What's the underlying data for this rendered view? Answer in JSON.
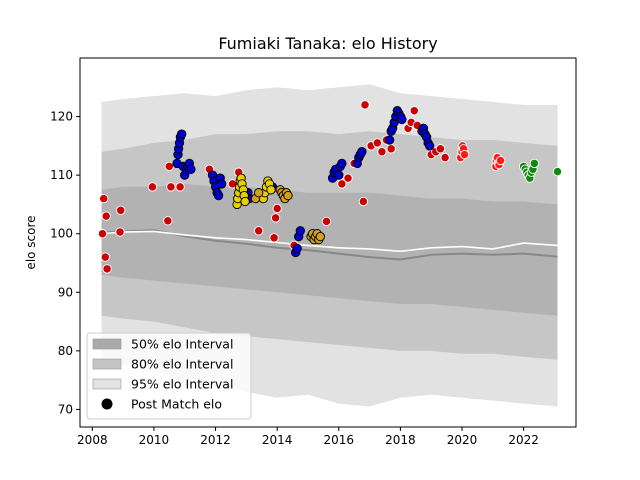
{
  "chart_data": {
    "type": "scatter",
    "title": "Fumiaki Tanaka: elo History",
    "xlabel": "",
    "ylabel": "elo score",
    "xlim": [
      2007.6,
      2023.7
    ],
    "ylim": [
      67,
      130
    ],
    "x_ticks": [
      2008,
      2010,
      2012,
      2014,
      2016,
      2018,
      2020,
      2022
    ],
    "y_ticks": [
      70,
      80,
      90,
      100,
      110,
      120
    ],
    "legend_position": "lower-left",
    "legend": [
      {
        "label": "50% elo Interval",
        "kind": "band",
        "color": "#a9a9a9"
      },
      {
        "label": "80% elo Interval",
        "kind": "band",
        "color": "#c4c4c4"
      },
      {
        "label": "95% elo Interval",
        "kind": "band",
        "color": "#e2e2e2"
      },
      {
        "label": "Post Match elo",
        "kind": "marker",
        "color": "#000000"
      }
    ],
    "colors": {
      "band95": "#e2e2e2",
      "band80": "#c6c6c6",
      "band50": "#b2b2b2",
      "mean_line": "#888888",
      "player_line": "#ffffff",
      "red": "#cc0000",
      "blue": "#0000cc",
      "yellow": "#e6d000",
      "gold": "#d4a017",
      "bright_red": "#ff1a1a",
      "green": "#118811"
    },
    "bands": {
      "x": [
        2008.3,
        2009.0,
        2010.0,
        2011.0,
        2012.0,
        2013.0,
        2014.0,
        2015.0,
        2016.0,
        2017.0,
        2018.0,
        2019.0,
        2020.0,
        2021.0,
        2022.0,
        2023.1
      ],
      "p95_upper": [
        122.5,
        123.0,
        123.5,
        124.0,
        123.5,
        124.5,
        125.0,
        124.5,
        125.0,
        125.5,
        124.0,
        123.5,
        123.0,
        122.5,
        122.0,
        122.0
      ],
      "p95_lower": [
        78.0,
        77.5,
        76.5,
        75.0,
        74.5,
        73.0,
        72.0,
        72.5,
        71.0,
        70.5,
        72.0,
        72.5,
        72.0,
        71.5,
        71.0,
        70.5
      ],
      "p80_upper": [
        114.0,
        114.5,
        115.5,
        116.0,
        117.0,
        117.0,
        117.5,
        117.5,
        117.0,
        117.5,
        117.0,
        116.5,
        116.0,
        116.0,
        115.5,
        115.0
      ],
      "p80_lower": [
        86.0,
        85.5,
        85.0,
        84.0,
        83.0,
        82.5,
        82.0,
        81.5,
        81.0,
        80.5,
        80.0,
        80.0,
        79.5,
        79.5,
        79.0,
        78.5
      ],
      "p50_upper": [
        107.5,
        108.0,
        108.0,
        108.5,
        108.0,
        108.0,
        107.5,
        107.0,
        107.0,
        107.0,
        106.5,
        106.0,
        106.0,
        105.5,
        105.5,
        105.0
      ],
      "p50_lower": [
        93.0,
        92.5,
        92.0,
        91.5,
        91.0,
        90.5,
        90.0,
        89.5,
        89.0,
        88.5,
        88.0,
        88.0,
        87.5,
        87.0,
        86.5,
        86.0
      ],
      "mean": [
        100.2,
        100.4,
        100.6,
        99.6,
        98.8,
        98.3,
        97.6,
        97.2,
        96.6,
        96.0,
        95.6,
        96.4,
        96.6,
        96.4,
        96.6,
        96.1
      ]
    },
    "player_line": {
      "x": [
        2008.3,
        2009.0,
        2010.0,
        2011.0,
        2012.0,
        2013.0,
        2014.0,
        2015.0,
        2016.0,
        2017.0,
        2018.0,
        2019.0,
        2020.0,
        2021.0,
        2022.0,
        2023.1
      ],
      "y": [
        100.0,
        100.3,
        100.4,
        99.8,
        99.3,
        99.0,
        98.5,
        98.0,
        97.6,
        97.4,
        97.0,
        97.6,
        97.8,
        97.4,
        98.4,
        98.0
      ]
    },
    "series": [
      {
        "color_key": "red",
        "x": [
          2008.33,
          2008.37,
          2008.42,
          2008.45,
          2008.48,
          2008.9,
          2008.92,
          2009.95,
          2010.45,
          2010.5,
          2010.55,
          2010.85,
          2011.8,
          2012.55,
          2012.75,
          2013.4,
          2013.9,
          2013.95,
          2014.0,
          2014.55,
          2015.6,
          2016.1,
          2016.3,
          2016.5,
          2016.8,
          2016.85,
          2017.05,
          2017.25,
          2017.4,
          2017.55,
          2017.7,
          2018.05,
          2018.25,
          2018.35,
          2018.45,
          2018.55,
          2019.0,
          2019.15,
          2019.3,
          2019.45
        ],
        "y": [
          100.0,
          106.0,
          96.0,
          103.0,
          94.0,
          100.3,
          104.0,
          108.0,
          102.2,
          111.5,
          108.0,
          108.0,
          111.0,
          108.5,
          110.5,
          100.5,
          99.3,
          102.7,
          104.3,
          98.0,
          102.1,
          108.5,
          109.5,
          112.0,
          105.5,
          122.0,
          115.0,
          115.5,
          114.0,
          116.0,
          114.5,
          120.0,
          118.0,
          119.0,
          121.0,
          118.5,
          113.5,
          114.0,
          114.5,
          113.0
        ]
      },
      {
        "color_key": "blue",
        "x": [
          2010.75,
          2010.78,
          2010.8,
          2010.83,
          2010.86,
          2010.9,
          2010.95,
          2011.0,
          2011.05,
          2011.1,
          2011.15,
          2011.2,
          2011.9,
          2011.95,
          2012.0,
          2012.05,
          2012.1,
          2012.15,
          2012.2,
          2013.0,
          2013.05,
          2013.1,
          2013.75,
          2013.8,
          2013.85,
          2014.6,
          2014.65,
          2014.7,
          2014.75,
          2015.8,
          2015.85,
          2015.9,
          2016.0,
          2016.05,
          2016.1,
          2016.6,
          2016.65,
          2016.7,
          2016.75,
          2017.65,
          2017.7,
          2017.75,
          2017.8,
          2017.85,
          2017.9,
          2017.95,
          2018.0,
          2018.05,
          2018.7,
          2018.75,
          2018.8,
          2018.85,
          2018.9,
          2018.95
        ],
        "y": [
          112.0,
          113.5,
          114.5,
          115.5,
          116.5,
          117.0,
          111.5,
          110.0,
          111.0,
          111.5,
          112.0,
          111.0,
          110.0,
          109.0,
          108.0,
          107.0,
          106.5,
          109.5,
          108.5,
          106.5,
          107.0,
          106.0,
          108.0,
          107.5,
          108.0,
          96.8,
          97.5,
          99.5,
          100.5,
          109.5,
          110.5,
          111.0,
          110.0,
          111.5,
          112.0,
          112.0,
          113.0,
          113.5,
          114.0,
          116.0,
          117.5,
          118.0,
          119.0,
          120.0,
          121.0,
          120.5,
          120.0,
          119.5,
          117.5,
          118.0,
          117.0,
          116.5,
          115.5,
          115.0
        ]
      },
      {
        "color_key": "yellow",
        "x": [
          2012.7,
          2012.72,
          2012.75,
          2012.78,
          2012.8,
          2012.83,
          2012.86,
          2012.9,
          2012.93,
          2012.96,
          2013.55,
          2013.6,
          2013.65,
          2013.7,
          2013.75,
          2013.8
        ],
        "y": [
          105.0,
          106.0,
          107.0,
          108.0,
          109.0,
          109.5,
          108.5,
          107.5,
          106.5,
          105.5,
          106.0,
          107.0,
          108.0,
          109.0,
          108.5,
          107.5
        ]
      },
      {
        "color_key": "gold",
        "x": [
          2013.3,
          2013.4,
          2014.1,
          2014.15,
          2014.2,
          2014.25,
          2014.3,
          2014.35,
          2015.1,
          2015.15,
          2015.2,
          2015.25,
          2015.3,
          2015.35,
          2015.4
        ],
        "y": [
          106.0,
          107.0,
          107.5,
          107.0,
          106.5,
          106.0,
          107.0,
          106.5,
          99.5,
          100.0,
          99.0,
          99.5,
          100.0,
          99.0,
          99.5
        ]
      },
      {
        "color_key": "bright_red",
        "x": [
          2019.95,
          2020.0,
          2020.02,
          2020.05,
          2020.08,
          2021.1,
          2021.12,
          2021.15,
          2021.18,
          2021.2,
          2021.25
        ],
        "y": [
          113.0,
          114.0,
          115.0,
          114.5,
          113.5,
          111.5,
          112.5,
          113.0,
          112.0,
          111.8,
          112.5
        ]
      },
      {
        "color_key": "green",
        "x": [
          2022.0,
          2022.05,
          2022.1,
          2022.15,
          2022.2,
          2022.25,
          2022.3,
          2022.35,
          2023.1
        ],
        "y": [
          111.5,
          111.0,
          110.5,
          110.0,
          109.5,
          110.5,
          111.0,
          112.0,
          110.6
        ]
      }
    ]
  }
}
